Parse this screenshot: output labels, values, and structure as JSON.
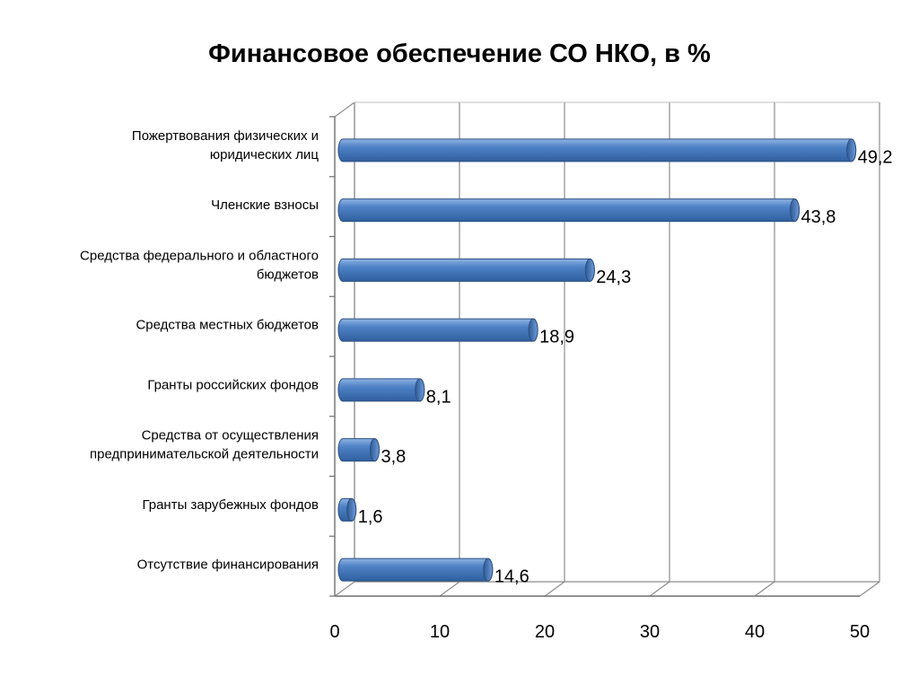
{
  "chart_data": {
    "type": "bar",
    "orientation": "horizontal",
    "title": "Финансовое обеспечение СО НКО, в %",
    "categories": [
      "Пожертвования физических и юридических лиц",
      "Членские взносы",
      "Средства федерального и областного бюджетов",
      "Средства местных бюджетов",
      "Гранты российских фондов",
      "Средства от осуществления предпринимательской деятельности",
      "Гранты зарубежных фондов",
      "Отсутствие финансирования"
    ],
    "category_lines": [
      [
        "Пожертвования физических и",
        "юридических лиц"
      ],
      [
        "Членские взносы"
      ],
      [
        "Средства федерального и областного",
        "бюджетов"
      ],
      [
        "Средства местных бюджетов"
      ],
      [
        "Гранты российских фондов"
      ],
      [
        "Средства от осуществления",
        "предпринимательской деятельности"
      ],
      [
        "Гранты зарубежных фондов"
      ],
      [
        "Отсутствие финансирования"
      ]
    ],
    "values": [
      49.2,
      43.8,
      24.3,
      18.9,
      8.1,
      3.8,
      1.6,
      14.6
    ],
    "value_labels": [
      "49,2",
      "43,8",
      "24,3",
      "18,9",
      "8,1",
      "3,8",
      "1,6",
      "14,6"
    ],
    "xlim": [
      0,
      50
    ],
    "xticks": [
      0,
      10,
      20,
      30,
      40,
      50
    ],
    "grid": true,
    "legend": false,
    "bar_color": "#4a7ec2"
  }
}
